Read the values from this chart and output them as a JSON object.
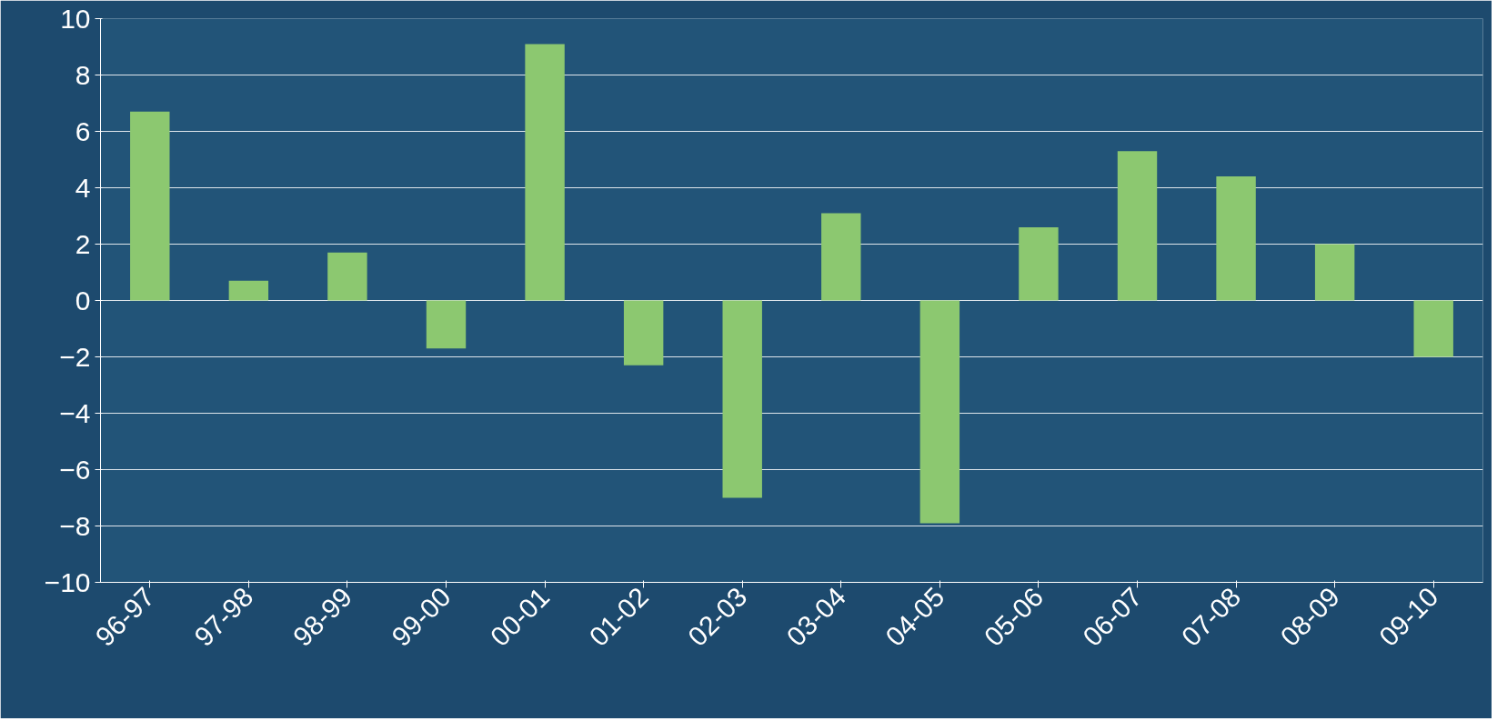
{
  "chart_data": {
    "type": "bar",
    "categories": [
      "96-97",
      "97-98",
      "98-99",
      "99-00",
      "00-01",
      "01-02",
      "02-03",
      "03-04",
      "04-05",
      "05-06",
      "06-07",
      "07-08",
      "08-09",
      "09-10"
    ],
    "values": [
      6.7,
      0.7,
      1.7,
      -1.7,
      9.1,
      -2.3,
      -7.0,
      3.1,
      -7.9,
      2.6,
      5.3,
      4.4,
      2.0,
      -2.0
    ],
    "color": "#8cc870",
    "ylim": [
      -10,
      10
    ],
    "yticks": [
      -10,
      -8,
      -6,
      -4,
      -2,
      0,
      2,
      4,
      6,
      8,
      10
    ],
    "grid": "y"
  }
}
